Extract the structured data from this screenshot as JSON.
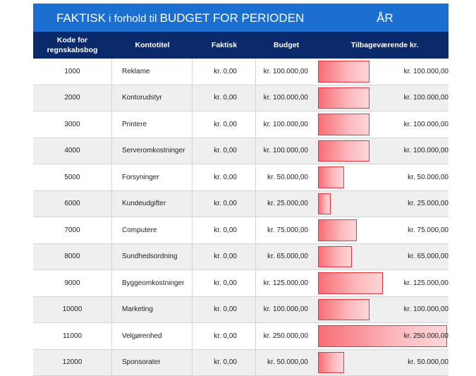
{
  "title": {
    "lead": "FAKTISK",
    "mid": " i forhold til ",
    "tail": "BUDGET FOR PERIODEN",
    "period": "ÅR"
  },
  "headers": {
    "code": "Kode for regnskabsbog",
    "account_title": "Kontotitel",
    "actual": "Faktisk",
    "budget": "Budget",
    "remaining": "Tilbageværende kr."
  },
  "colors": {
    "title_bg": "#1a6fd1",
    "header_bg": "#0b2a6b",
    "bar_fill": "#f76e76",
    "bar_border": "#e8343f"
  },
  "rows": [
    {
      "code": "1000",
      "title": "Reklame",
      "actual": "kr. 0,00",
      "budget": "kr. 100.000,00",
      "remaining": "kr. 100.000,00",
      "remaining_value": 100000
    },
    {
      "code": "2000",
      "title": "Kontorudstyr",
      "actual": "kr. 0,00",
      "budget": "kr. 100.000,00",
      "remaining": "kr. 100.000,00",
      "remaining_value": 100000
    },
    {
      "code": "3000",
      "title": "Printere",
      "actual": "kr. 0,00",
      "budget": "kr. 100.000,00",
      "remaining": "kr. 100.000,00",
      "remaining_value": 100000
    },
    {
      "code": "4000",
      "title": "Serveromkostninger",
      "actual": "kr. 0,00",
      "budget": "kr. 100.000,00",
      "remaining": "kr. 100.000,00",
      "remaining_value": 100000
    },
    {
      "code": "5000",
      "title": "Forsyninger",
      "actual": "kr. 0,00",
      "budget": "kr. 50.000,00",
      "remaining": "kr. 50.000,00",
      "remaining_value": 50000
    },
    {
      "code": "6000",
      "title": "Kundeudgifter",
      "actual": "kr. 0,00",
      "budget": "kr. 25.000,00",
      "remaining": "kr. 25.000,00",
      "remaining_value": 25000
    },
    {
      "code": "7000",
      "title": "Computere",
      "actual": "kr. 0,00",
      "budget": "kr. 75.000,00",
      "remaining": "kr. 75.000,00",
      "remaining_value": 75000
    },
    {
      "code": "8000",
      "title": "Sundhedsordning",
      "actual": "kr. 0,00",
      "budget": "kr. 65.000,00",
      "remaining": "kr. 65.000,00",
      "remaining_value": 65000
    },
    {
      "code": "9000",
      "title": "Byggeomkostninger",
      "actual": "kr. 0,00",
      "budget": "kr. 125.000,00",
      "remaining": "kr. 125.000,00",
      "remaining_value": 125000
    },
    {
      "code": "10000",
      "title": "Marketing",
      "actual": "kr. 0,00",
      "budget": "kr. 100.000,00",
      "remaining": "kr. 100.000,00",
      "remaining_value": 100000
    },
    {
      "code": "11000",
      "title": "Velgørenhed",
      "actual": "kr. 0,00",
      "budget": "kr. 250.000,00",
      "remaining": "kr. 250.000,00",
      "remaining_value": 250000
    },
    {
      "code": "12000",
      "title": "Sponsorater",
      "actual": "kr. 0,00",
      "budget": "kr. 50.000,00",
      "remaining": "kr. 50.000,00",
      "remaining_value": 50000
    }
  ]
}
